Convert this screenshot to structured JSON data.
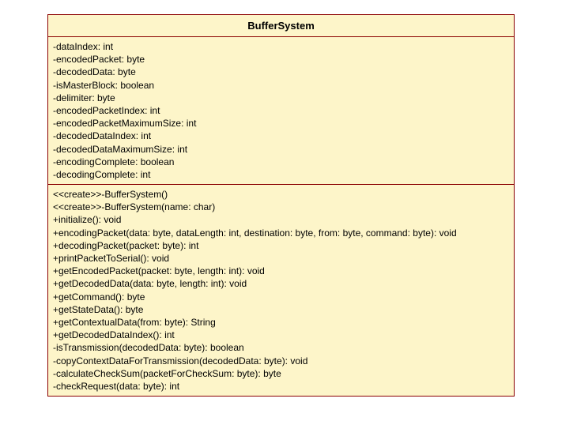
{
  "diagram": {
    "type": "uml-class",
    "background_color": "#fdf5c9",
    "border_color": "#8b0000",
    "font_family": "Verdana, Geneva, sans-serif",
    "title_fontsize_pt": 10,
    "body_fontsize_pt": 9,
    "class_name": "BufferSystem",
    "attributes": [
      "-dataIndex: int",
      "-encodedPacket: byte",
      "-decodedData: byte",
      "-isMasterBlock: boolean",
      "-delimiter: byte",
      "-encodedPacketIndex: int",
      "-encodedPacketMaximumSize: int",
      "-decodedDataIndex: int",
      "-decodedDataMaximumSize: int",
      "-encodingComplete: boolean",
      "-decodingComplete: int"
    ],
    "operations": [
      "<<create>>-BufferSystem()",
      "<<create>>-BufferSystem(name: char)",
      "+initialize(): void",
      "+encodingPacket(data: byte, dataLength: int, destination: byte, from: byte, command: byte): void",
      "+decodingPacket(packet: byte): int",
      "+printPacketToSerial(): void",
      "+getEncodedPacket(packet: byte, length: int): void",
      "+getDecodedData(data: byte, length: int): void",
      "+getCommand(): byte",
      "+getStateData(): byte",
      "+getContextualData(from: byte): String",
      "+getDecodedDataIndex(): int",
      "-isTransmission(decodedData: byte): boolean",
      "-copyContextDataForTransmission(decodedData: byte): void",
      "-calculateCheckSum(packetForCheckSum: byte): byte",
      "-checkRequest(data: byte): int"
    ]
  }
}
